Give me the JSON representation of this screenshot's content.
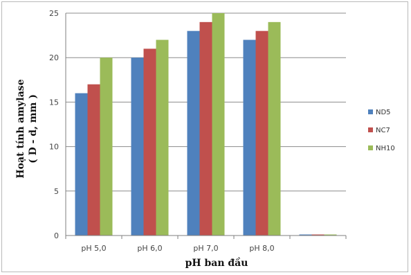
{
  "chart_data": {
    "type": "bar",
    "categories": [
      "pH 5,0",
      "pH 6,0",
      "pH 7,0",
      "pH 8,0",
      ""
    ],
    "series": [
      {
        "name": "ND5",
        "color": "#4f81bd",
        "values": [
          16,
          20,
          23,
          22,
          0
        ]
      },
      {
        "name": "NC7",
        "color": "#c0504d",
        "values": [
          17,
          21,
          24,
          23,
          0
        ]
      },
      {
        "name": "NH10",
        "color": "#9bbb59",
        "values": [
          20,
          22,
          25,
          24,
          0
        ]
      }
    ],
    "xlabel": "pH ban đầu",
    "ylabel_line1": "Hoạt tính amylase",
    "ylabel_line2": "( D - d, mm )",
    "ylim": [
      0,
      25
    ],
    "yticks": [
      0,
      5,
      10,
      15,
      20,
      25
    ],
    "grid": true,
    "legend_position": "right"
  }
}
